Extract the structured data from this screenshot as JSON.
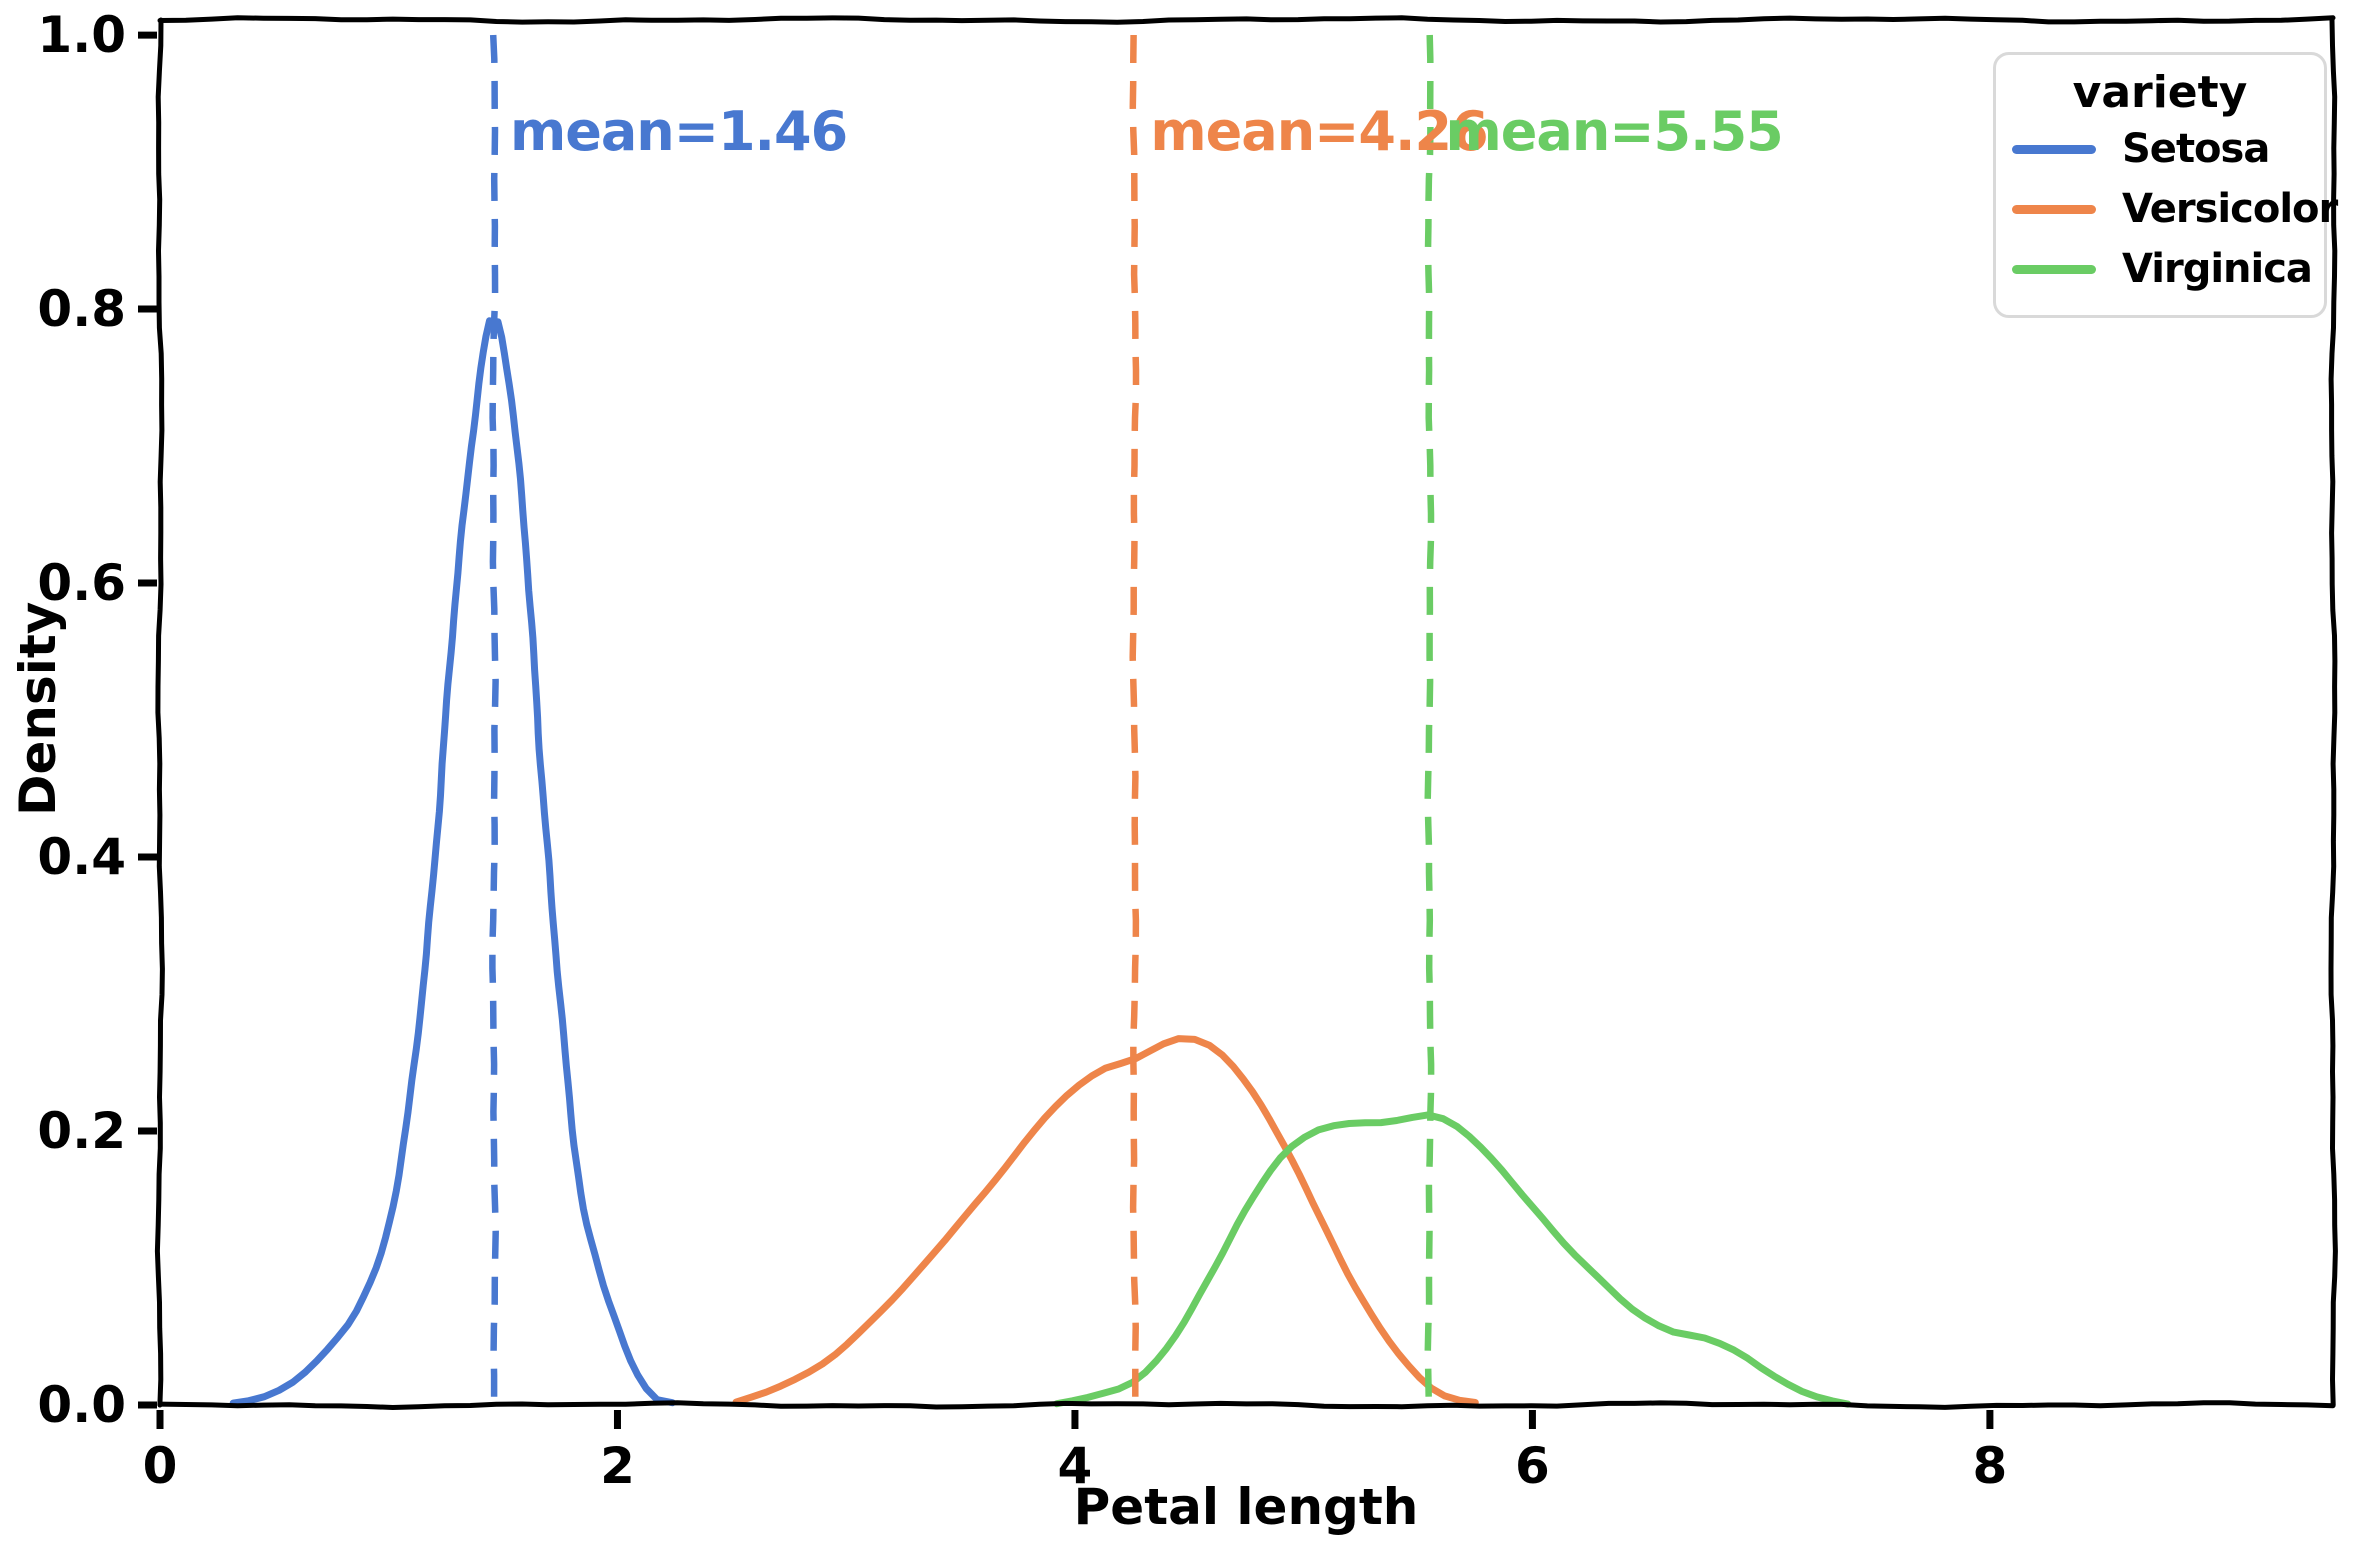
{
  "chart_data": {
    "type": "line",
    "subtype": "kde-density",
    "style": "xkcd-sketch",
    "title": "",
    "xlabel": "Petal length",
    "ylabel": "Density",
    "xlim": [
      0,
      9.5
    ],
    "ylim": [
      0,
      1.011
    ],
    "grid": false,
    "background": "#ffffff",
    "axis_color": "#000000",
    "xticks": [
      {
        "value": 0,
        "label": "0"
      },
      {
        "value": 2,
        "label": "2"
      },
      {
        "value": 4,
        "label": "4"
      },
      {
        "value": 6,
        "label": "6"
      },
      {
        "value": 8,
        "label": "8"
      }
    ],
    "yticks": [
      {
        "value": 0.0,
        "label": "0.0"
      },
      {
        "value": 0.2,
        "label": "0.2"
      },
      {
        "value": 0.4,
        "label": "0.4"
      },
      {
        "value": 0.6,
        "label": "0.6"
      },
      {
        "value": 0.8,
        "label": "0.8"
      },
      {
        "value": 1.0,
        "label": "1.0"
      }
    ],
    "legend": {
      "title": "variety",
      "position": "upper right",
      "entries": [
        "Setosa",
        "Versicolor",
        "Virginica"
      ]
    },
    "series": [
      {
        "name": "Setosa",
        "color": "#4878d0",
        "mean": 1.46,
        "mean_label": "mean=1.46",
        "points": [
          [
            0.32,
            0.0
          ],
          [
            0.45,
            0.006
          ],
          [
            0.6,
            0.02
          ],
          [
            0.75,
            0.045
          ],
          [
            0.88,
            0.075
          ],
          [
            1.0,
            0.13
          ],
          [
            1.1,
            0.23
          ],
          [
            1.2,
            0.4
          ],
          [
            1.3,
            0.6
          ],
          [
            1.38,
            0.73
          ],
          [
            1.45,
            0.795
          ],
          [
            1.52,
            0.755
          ],
          [
            1.6,
            0.62
          ],
          [
            1.68,
            0.44
          ],
          [
            1.76,
            0.27
          ],
          [
            1.84,
            0.155
          ],
          [
            1.92,
            0.1
          ],
          [
            2.0,
            0.06
          ],
          [
            2.08,
            0.025
          ],
          [
            2.16,
            0.005
          ],
          [
            2.24,
            0.0
          ]
        ]
      },
      {
        "name": "Versicolor",
        "color": "#ee854a",
        "mean": 4.26,
        "mean_label": "mean=4.26",
        "points": [
          [
            2.52,
            0.0
          ],
          [
            2.7,
            0.012
          ],
          [
            2.9,
            0.03
          ],
          [
            3.1,
            0.06
          ],
          [
            3.3,
            0.095
          ],
          [
            3.5,
            0.135
          ],
          [
            3.7,
            0.175
          ],
          [
            3.9,
            0.215
          ],
          [
            4.1,
            0.243
          ],
          [
            4.26,
            0.252
          ],
          [
            4.4,
            0.264
          ],
          [
            4.5,
            0.267
          ],
          [
            4.62,
            0.258
          ],
          [
            4.75,
            0.235
          ],
          [
            4.9,
            0.195
          ],
          [
            5.05,
            0.145
          ],
          [
            5.2,
            0.095
          ],
          [
            5.35,
            0.052
          ],
          [
            5.5,
            0.02
          ],
          [
            5.62,
            0.006
          ],
          [
            5.75,
            0.0
          ]
        ]
      },
      {
        "name": "Virginica",
        "color": "#6acc64",
        "mean": 5.55,
        "mean_label": "mean=5.55",
        "points": [
          [
            3.92,
            0.0
          ],
          [
            4.1,
            0.008
          ],
          [
            4.26,
            0.018
          ],
          [
            4.42,
            0.045
          ],
          [
            4.58,
            0.09
          ],
          [
            4.74,
            0.14
          ],
          [
            4.9,
            0.18
          ],
          [
            5.05,
            0.2
          ],
          [
            5.2,
            0.206
          ],
          [
            5.35,
            0.207
          ],
          [
            5.5,
            0.211
          ],
          [
            5.58,
            0.211
          ],
          [
            5.7,
            0.2
          ],
          [
            5.85,
            0.175
          ],
          [
            6.0,
            0.145
          ],
          [
            6.15,
            0.115
          ],
          [
            6.3,
            0.09
          ],
          [
            6.45,
            0.068
          ],
          [
            6.6,
            0.054
          ],
          [
            6.75,
            0.049
          ],
          [
            6.9,
            0.038
          ],
          [
            7.05,
            0.022
          ],
          [
            7.2,
            0.009
          ],
          [
            7.38,
            0.0
          ]
        ]
      }
    ]
  }
}
